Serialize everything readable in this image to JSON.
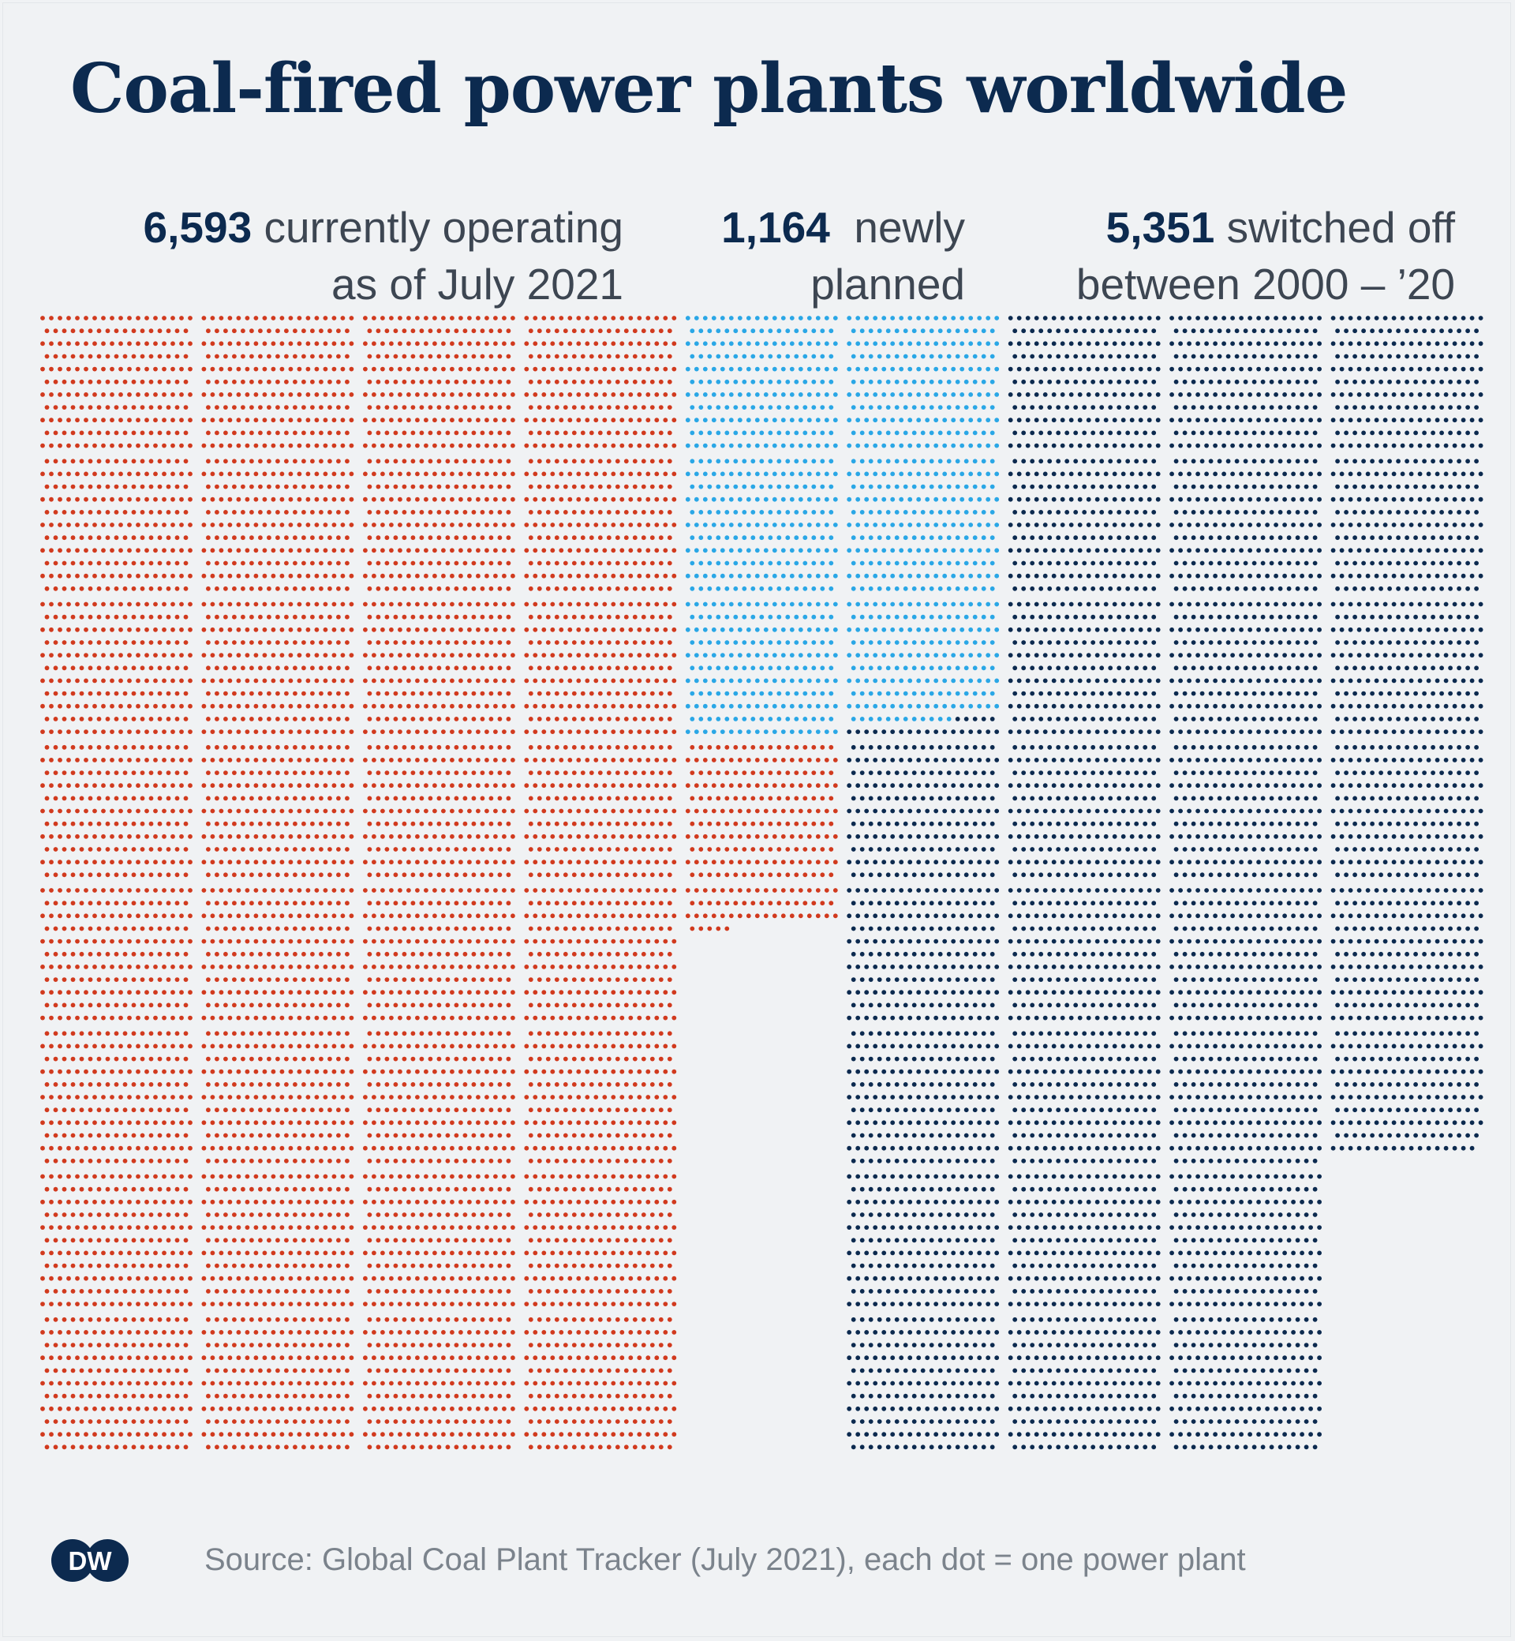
{
  "title": "Coal-fired power plants worldwide",
  "categories": {
    "operating": {
      "value": "6,593",
      "text_line1": "currently operating",
      "text_line2": "as of July 2021",
      "color": "#d13a1e"
    },
    "planned": {
      "value": "1,164",
      "text_line1": "newly",
      "text_line2": "planned",
      "color": "#2aa7e6"
    },
    "switched_off": {
      "value": "5,351",
      "text_line1": "switched off",
      "text_line2": "between 2000 – ’20",
      "color": "#0c2a4f"
    }
  },
  "source": "Source: Global Coal Plant Tracker (July 2021), each dot = one power plant",
  "logo": {
    "text": "DW",
    "color": "#0c2a4f"
  },
  "chart_data": {
    "type": "waffle",
    "title": "Coal-fired power plants worldwide",
    "unit": "each dot = one power plant",
    "categories": [
      "currently operating as of July 2021",
      "newly planned",
      "switched off between 2000 – ’20"
    ],
    "values": [
      6593,
      1164,
      5351
    ],
    "colors": [
      "#d13a1e",
      "#2aa7e6",
      "#0c2a4f"
    ]
  }
}
